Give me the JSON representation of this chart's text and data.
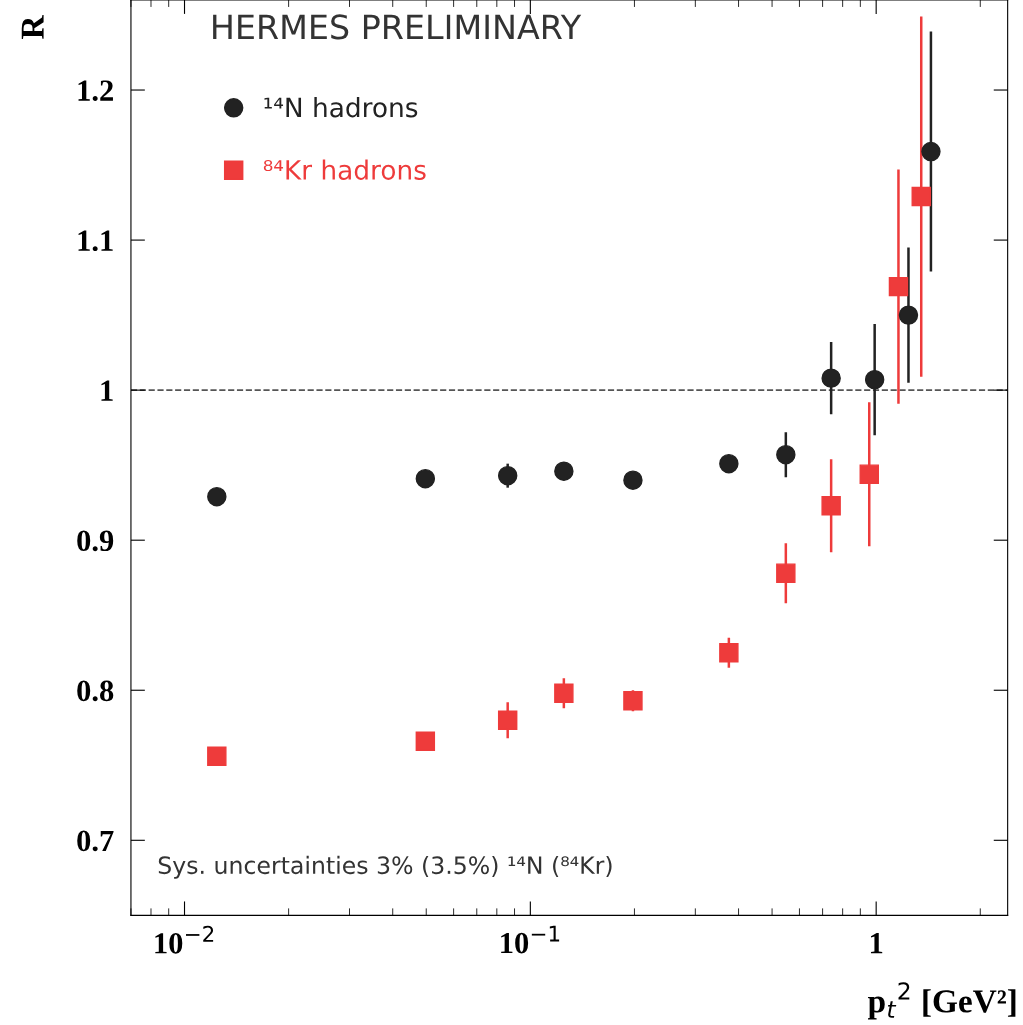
{
  "chart_data": {
    "type": "scatter",
    "ylabel": "R",
    "xlabel": "p$_{t}$$^{2}$ [GeV²]",
    "log": "x",
    "xlim": [
      0.007,
      2.4
    ],
    "ylim": [
      0.65,
      1.26
    ],
    "xticks": [
      {
        "value": 0.01,
        "label": "10$^{−2}$"
      },
      {
        "value": 0.1,
        "label": "10$^{−1}$"
      },
      {
        "value": 1,
        "label": "1"
      }
    ],
    "yticks": [
      0.7,
      0.8,
      0.9,
      1,
      1.1,
      1.2
    ],
    "grid": false,
    "legend": "top left",
    "annotations": [
      "HERMES PRELIMINARY",
      "Sys. uncertainties 3% (3.5%) ¹⁴N (⁸⁴Kr)"
    ],
    "ref_lines": [
      {
        "axis": "y",
        "value": 1,
        "color": "#555555",
        "line_style": "dashed"
      }
    ],
    "series": [
      {
        "name": "¹⁴N hadrons",
        "color": "#222222",
        "marker": "circle",
        "x": [
          0.0124,
          0.0497,
          0.086,
          0.125,
          0.198,
          0.375,
          0.548,
          0.741,
          0.99,
          1.24,
          1.44
        ],
        "values": [
          0.929,
          0.941,
          0.943,
          0.946,
          0.94,
          0.951,
          0.957,
          1.008,
          1.007,
          1.05,
          1.159
        ],
        "errors": [
          0.004,
          0.004,
          0.008,
          0.006,
          0.004,
          0.005,
          0.015,
          0.024,
          0.037,
          0.045,
          0.08
        ]
      },
      {
        "name": "⁸⁴Kr hadrons",
        "color": "#ee3b3b",
        "marker": "square",
        "x": [
          0.0124,
          0.0497,
          0.086,
          0.125,
          0.198,
          0.375,
          0.548,
          0.741,
          0.955,
          1.16,
          1.35
        ],
        "values": [
          0.756,
          0.766,
          0.78,
          0.798,
          0.793,
          0.825,
          0.878,
          0.923,
          0.944,
          1.069,
          1.129
        ],
        "errors": [
          0.005,
          0.005,
          0.012,
          0.01,
          0.007,
          0.01,
          0.02,
          0.031,
          0.048,
          0.078,
          0.12
        ]
      }
    ]
  }
}
